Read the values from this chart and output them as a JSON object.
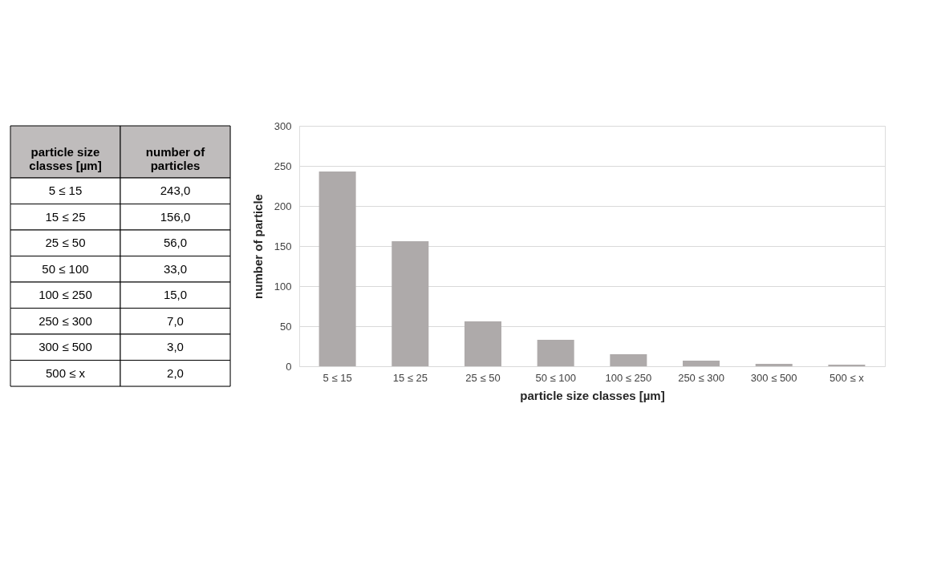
{
  "chart_data": [
    {
      "type": "other",
      "annotations": [
        "particle size classes [µm]",
        "number of particles",
        "5 ≤ 15",
        "243,0",
        "15 ≤ 25",
        "156,0",
        "25 ≤ 50",
        "56,0",
        "50 ≤ 100",
        "33,0",
        "100 ≤ 250",
        "15,0",
        "250 ≤ 300",
        "7,0",
        "300 ≤ 500",
        "3,0",
        "500 ≤ x",
        "2,0"
      ]
    },
    {
      "type": "bar",
      "categories": [
        "5 ≤ 15",
        "15 ≤ 25",
        "25 ≤ 50",
        "50 ≤ 100",
        "100 ≤ 250",
        "250 ≤ 300",
        "300 ≤ 500",
        "500 ≤ x"
      ],
      "values": [
        243,
        156,
        56,
        33,
        15,
        7,
        3,
        2
      ],
      "color": "#aeaaaa",
      "xlabel": "particle size classes [µm]",
      "ylabel": "number of particle",
      "ylim": [
        0,
        300
      ],
      "yticks": [
        0,
        50,
        100,
        150,
        200,
        250,
        300
      ],
      "grid": "y"
    }
  ]
}
